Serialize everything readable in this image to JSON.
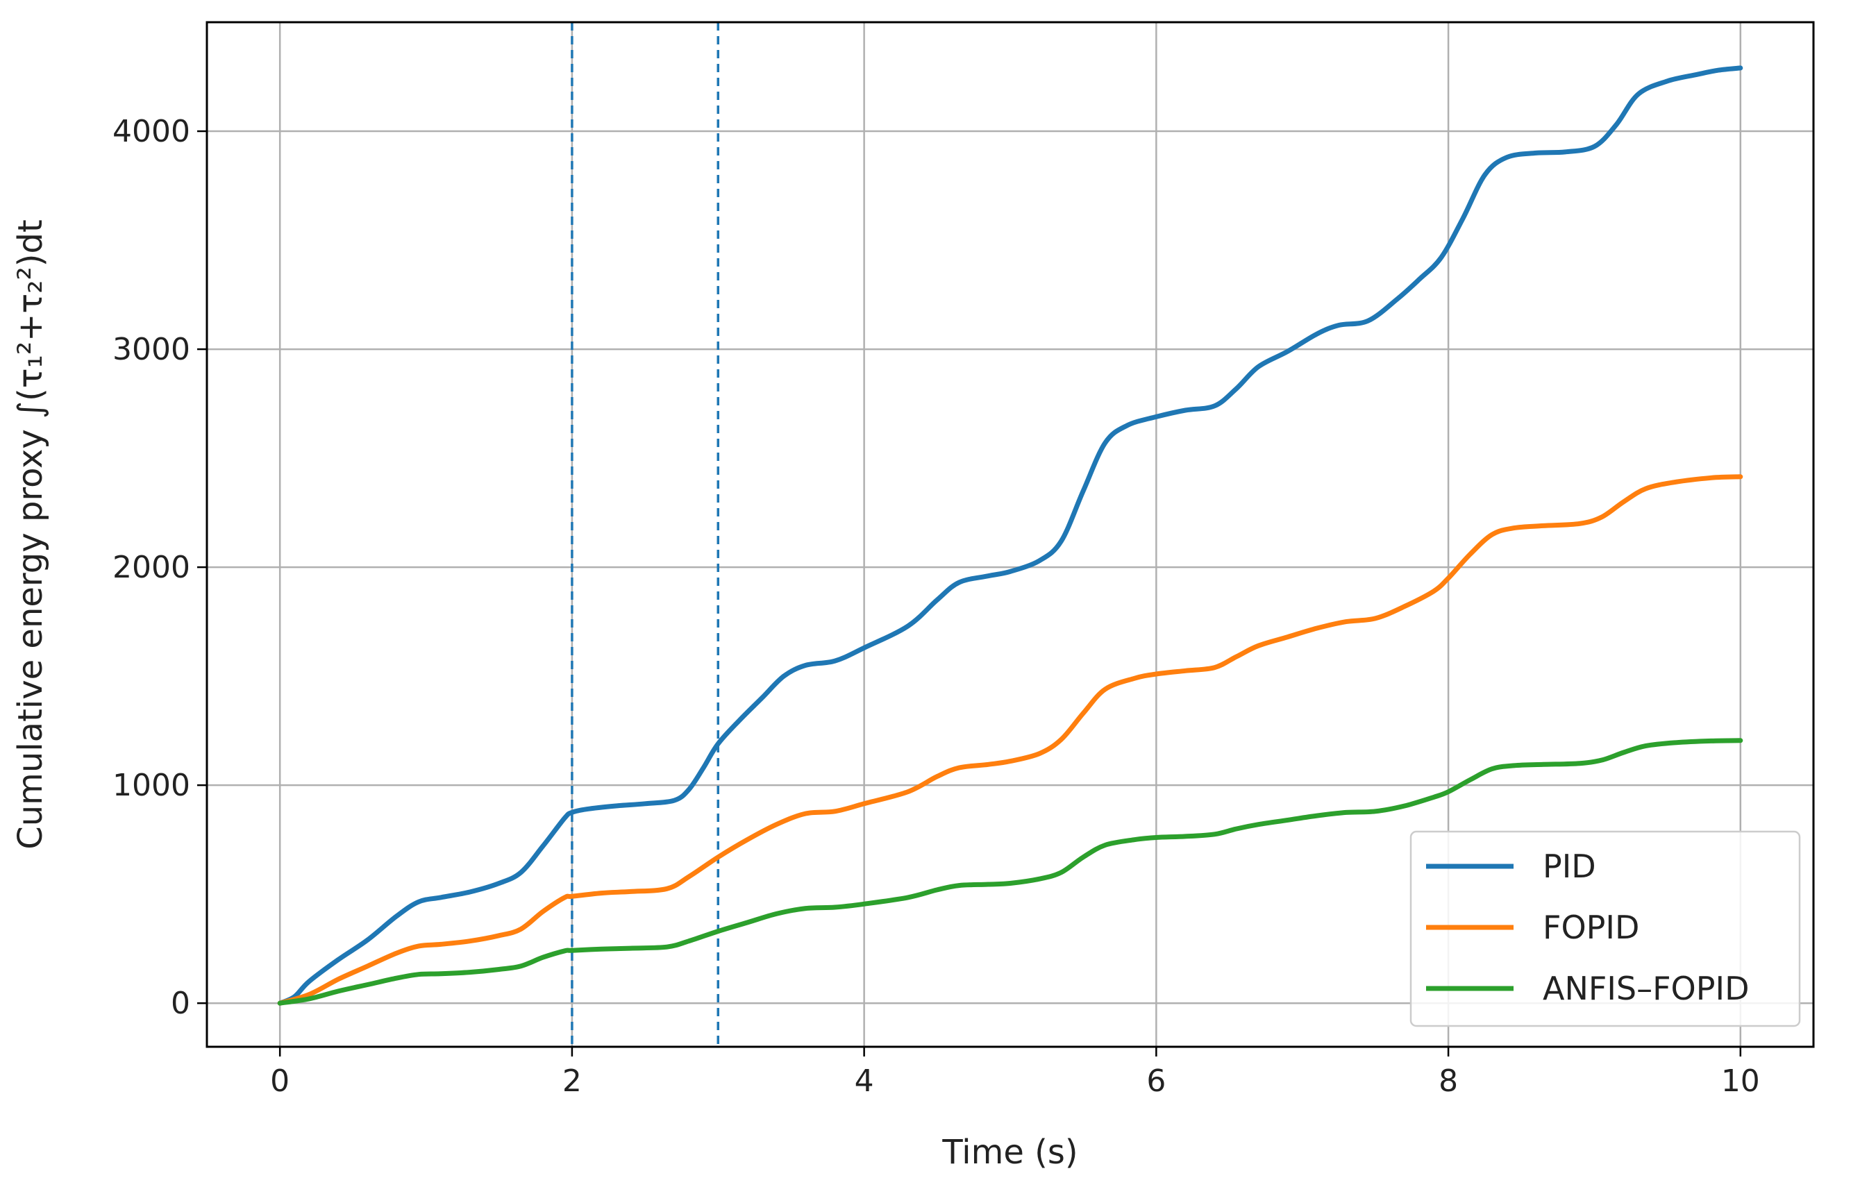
{
  "chart_data": {
    "type": "line",
    "xlabel": "Time (s)",
    "ylabel": "Cumulative energy proxy ∫(τ₁²+τ₂²)dt",
    "xlim": [
      -0.5,
      10.5
    ],
    "ylim": [
      -200,
      4500
    ],
    "xticks": [
      0,
      2,
      4,
      6,
      8,
      10
    ],
    "yticks": [
      0,
      1000,
      2000,
      3000,
      4000
    ],
    "grid": true,
    "legend_position": "bottom-right",
    "vlines": [
      2,
      3
    ],
    "vline_color": "#1f77b4",
    "series": [
      {
        "name": "PID",
        "color": "#1f77b4",
        "points": [
          [
            0,
            0
          ],
          [
            0.1,
            30
          ],
          [
            0.2,
            100
          ],
          [
            0.4,
            200
          ],
          [
            0.6,
            290
          ],
          [
            0.8,
            400
          ],
          [
            0.95,
            465
          ],
          [
            1.1,
            485
          ],
          [
            1.3,
            510
          ],
          [
            1.5,
            550
          ],
          [
            1.65,
            600
          ],
          [
            1.8,
            720
          ],
          [
            1.95,
            850
          ],
          [
            2.0,
            875
          ],
          [
            2.1,
            890
          ],
          [
            2.3,
            905
          ],
          [
            2.5,
            915
          ],
          [
            2.7,
            930
          ],
          [
            2.8,
            980
          ],
          [
            2.9,
            1080
          ],
          [
            3.0,
            1190
          ],
          [
            3.15,
            1300
          ],
          [
            3.3,
            1400
          ],
          [
            3.45,
            1500
          ],
          [
            3.6,
            1550
          ],
          [
            3.8,
            1570
          ],
          [
            4.0,
            1630
          ],
          [
            4.3,
            1730
          ],
          [
            4.5,
            1850
          ],
          [
            4.65,
            1930
          ],
          [
            4.85,
            1960
          ],
          [
            5.0,
            1980
          ],
          [
            5.2,
            2030
          ],
          [
            5.35,
            2120
          ],
          [
            5.5,
            2350
          ],
          [
            5.65,
            2570
          ],
          [
            5.8,
            2650
          ],
          [
            6.0,
            2690
          ],
          [
            6.2,
            2720
          ],
          [
            6.4,
            2740
          ],
          [
            6.55,
            2820
          ],
          [
            6.7,
            2920
          ],
          [
            6.9,
            2990
          ],
          [
            7.1,
            3070
          ],
          [
            7.25,
            3110
          ],
          [
            7.45,
            3130
          ],
          [
            7.65,
            3230
          ],
          [
            7.8,
            3320
          ],
          [
            7.95,
            3420
          ],
          [
            8.1,
            3600
          ],
          [
            8.25,
            3800
          ],
          [
            8.4,
            3880
          ],
          [
            8.6,
            3900
          ],
          [
            8.8,
            3905
          ],
          [
            9.0,
            3930
          ],
          [
            9.15,
            4030
          ],
          [
            9.3,
            4170
          ],
          [
            9.5,
            4230
          ],
          [
            9.7,
            4260
          ],
          [
            9.85,
            4280
          ],
          [
            10.0,
            4290
          ]
        ]
      },
      {
        "name": "FOPID",
        "color": "#ff7f0e",
        "points": [
          [
            0,
            0
          ],
          [
            0.2,
            40
          ],
          [
            0.4,
            110
          ],
          [
            0.6,
            170
          ],
          [
            0.8,
            230
          ],
          [
            0.95,
            262
          ],
          [
            1.1,
            270
          ],
          [
            1.3,
            285
          ],
          [
            1.5,
            310
          ],
          [
            1.65,
            340
          ],
          [
            1.8,
            420
          ],
          [
            1.95,
            485
          ],
          [
            2.0,
            490
          ],
          [
            2.2,
            505
          ],
          [
            2.4,
            512
          ],
          [
            2.65,
            525
          ],
          [
            2.8,
            580
          ],
          [
            3.0,
            670
          ],
          [
            3.2,
            750
          ],
          [
            3.4,
            820
          ],
          [
            3.6,
            870
          ],
          [
            3.8,
            880
          ],
          [
            4.0,
            915
          ],
          [
            4.3,
            970
          ],
          [
            4.5,
            1040
          ],
          [
            4.65,
            1080
          ],
          [
            4.85,
            1095
          ],
          [
            5.0,
            1110
          ],
          [
            5.2,
            1145
          ],
          [
            5.35,
            1210
          ],
          [
            5.5,
            1330
          ],
          [
            5.65,
            1440
          ],
          [
            5.85,
            1490
          ],
          [
            6.0,
            1510
          ],
          [
            6.2,
            1525
          ],
          [
            6.4,
            1540
          ],
          [
            6.55,
            1590
          ],
          [
            6.7,
            1640
          ],
          [
            6.9,
            1680
          ],
          [
            7.1,
            1720
          ],
          [
            7.3,
            1750
          ],
          [
            7.5,
            1765
          ],
          [
            7.7,
            1820
          ],
          [
            7.9,
            1890
          ],
          [
            8.0,
            1950
          ],
          [
            8.15,
            2060
          ],
          [
            8.3,
            2150
          ],
          [
            8.45,
            2180
          ],
          [
            8.65,
            2190
          ],
          [
            8.9,
            2200
          ],
          [
            9.05,
            2230
          ],
          [
            9.2,
            2300
          ],
          [
            9.35,
            2360
          ],
          [
            9.55,
            2390
          ],
          [
            9.8,
            2410
          ],
          [
            10.0,
            2415
          ]
        ]
      },
      {
        "name": "ANFIS–FOPID",
        "color": "#2ca02c",
        "points": [
          [
            0,
            0
          ],
          [
            0.2,
            20
          ],
          [
            0.4,
            55
          ],
          [
            0.6,
            85
          ],
          [
            0.8,
            115
          ],
          [
            0.95,
            132
          ],
          [
            1.1,
            135
          ],
          [
            1.3,
            142
          ],
          [
            1.5,
            155
          ],
          [
            1.65,
            170
          ],
          [
            1.8,
            210
          ],
          [
            1.95,
            240
          ],
          [
            2.0,
            242
          ],
          [
            2.2,
            248
          ],
          [
            2.4,
            252
          ],
          [
            2.65,
            258
          ],
          [
            2.8,
            285
          ],
          [
            3.0,
            330
          ],
          [
            3.2,
            370
          ],
          [
            3.4,
            410
          ],
          [
            3.6,
            435
          ],
          [
            3.8,
            440
          ],
          [
            4.0,
            455
          ],
          [
            4.3,
            485
          ],
          [
            4.5,
            520
          ],
          [
            4.65,
            540
          ],
          [
            4.85,
            545
          ],
          [
            5.0,
            550
          ],
          [
            5.2,
            570
          ],
          [
            5.35,
            600
          ],
          [
            5.5,
            670
          ],
          [
            5.65,
            725
          ],
          [
            5.85,
            750
          ],
          [
            6.0,
            760
          ],
          [
            6.2,
            765
          ],
          [
            6.4,
            775
          ],
          [
            6.55,
            800
          ],
          [
            6.7,
            820
          ],
          [
            6.9,
            840
          ],
          [
            7.1,
            860
          ],
          [
            7.3,
            875
          ],
          [
            7.5,
            880
          ],
          [
            7.7,
            905
          ],
          [
            7.9,
            945
          ],
          [
            8.0,
            970
          ],
          [
            8.15,
            1025
          ],
          [
            8.3,
            1075
          ],
          [
            8.45,
            1090
          ],
          [
            8.65,
            1095
          ],
          [
            8.9,
            1100
          ],
          [
            9.05,
            1115
          ],
          [
            9.2,
            1150
          ],
          [
            9.35,
            1180
          ],
          [
            9.55,
            1195
          ],
          [
            9.8,
            1203
          ],
          [
            10.0,
            1205
          ]
        ]
      }
    ]
  }
}
